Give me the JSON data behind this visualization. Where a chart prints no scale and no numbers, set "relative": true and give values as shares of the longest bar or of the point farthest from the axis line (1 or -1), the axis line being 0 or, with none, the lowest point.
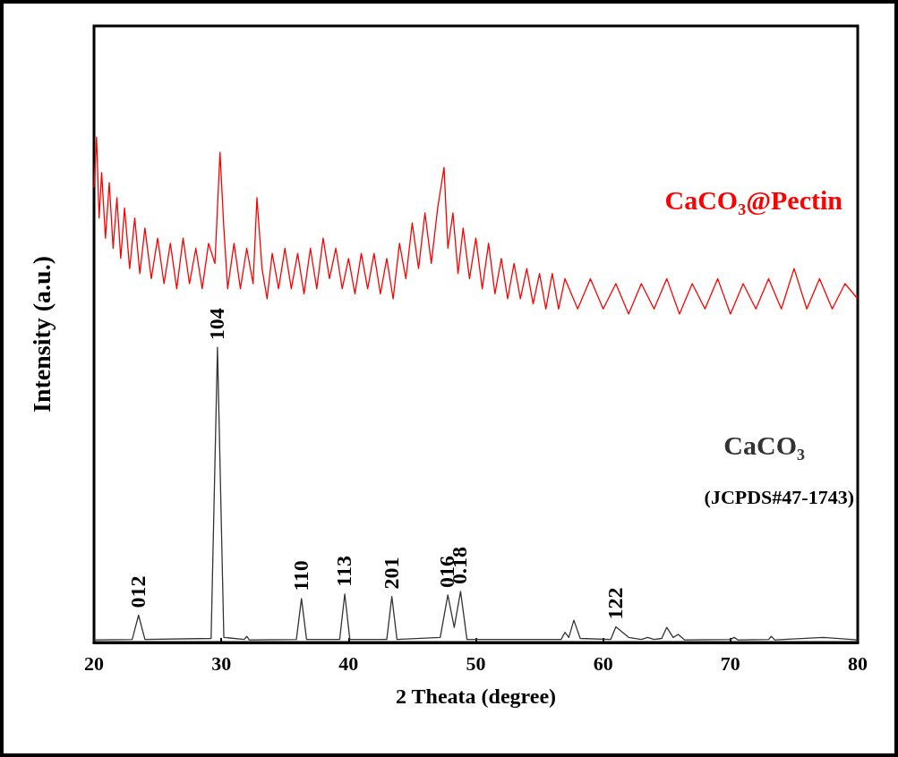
{
  "chart_data": {
    "type": "line",
    "relative": true,
    "xlabel": "2 Theata (degree)",
    "ylabel": "Intensity (a.u.)",
    "xlim": [
      20,
      80
    ],
    "xticks": [
      20,
      30,
      40,
      50,
      60,
      70,
      80
    ],
    "grid": false,
    "legend": false,
    "marker": "none",
    "line_style": "solid",
    "series": [
      {
        "name": "CaCO₃@Pectin",
        "color": "#ff0000",
        "x": [
          20.0,
          20.2,
          20.4,
          20.6,
          20.9,
          21.2,
          21.5,
          21.8,
          22.1,
          22.4,
          22.8,
          23.2,
          23.6,
          24.0,
          24.5,
          25.0,
          25.5,
          26.0,
          26.5,
          27.0,
          27.5,
          28.0,
          28.5,
          29.0,
          29.5,
          29.9,
          30.2,
          30.5,
          31.0,
          31.5,
          32.0,
          32.5,
          32.8,
          33.2,
          33.6,
          34.0,
          34.5,
          35.0,
          35.5,
          36.0,
          36.5,
          37.0,
          37.5,
          38.0,
          38.5,
          39.0,
          39.5,
          40.0,
          40.5,
          41.0,
          41.5,
          42.0,
          42.5,
          43.0,
          43.5,
          44.0,
          44.5,
          45.0,
          45.5,
          46.0,
          46.5,
          47.0,
          47.5,
          47.8,
          48.2,
          48.6,
          49.0,
          49.5,
          50.0,
          50.5,
          51.0,
          51.5,
          52.0,
          52.5,
          53.0,
          53.5,
          54.0,
          54.5,
          55.0,
          55.5,
          56.0,
          56.5,
          57.0,
          58.0,
          59.0,
          60.0,
          61.0,
          62.0,
          63.0,
          64.0,
          65.0,
          66.0,
          67.0,
          68.0,
          69.0,
          70.0,
          71.0,
          72.0,
          73.0,
          74.0,
          75.0,
          76.0,
          77.0,
          78.0,
          79.0,
          80.0
        ],
        "values": [
          0.9,
          1.0,
          0.84,
          0.93,
          0.8,
          0.91,
          0.78,
          0.88,
          0.76,
          0.86,
          0.74,
          0.84,
          0.73,
          0.82,
          0.72,
          0.8,
          0.71,
          0.79,
          0.7,
          0.8,
          0.71,
          0.78,
          0.7,
          0.79,
          0.75,
          0.97,
          0.82,
          0.7,
          0.79,
          0.7,
          0.78,
          0.71,
          0.88,
          0.74,
          0.68,
          0.77,
          0.7,
          0.78,
          0.7,
          0.77,
          0.69,
          0.78,
          0.7,
          0.8,
          0.72,
          0.78,
          0.7,
          0.76,
          0.69,
          0.77,
          0.7,
          0.77,
          0.69,
          0.76,
          0.68,
          0.79,
          0.72,
          0.83,
          0.74,
          0.85,
          0.75,
          0.86,
          0.94,
          0.78,
          0.85,
          0.73,
          0.82,
          0.72,
          0.8,
          0.7,
          0.79,
          0.69,
          0.76,
          0.68,
          0.75,
          0.68,
          0.74,
          0.67,
          0.73,
          0.66,
          0.73,
          0.66,
          0.72,
          0.66,
          0.72,
          0.66,
          0.71,
          0.65,
          0.71,
          0.66,
          0.72,
          0.65,
          0.71,
          0.66,
          0.72,
          0.65,
          0.71,
          0.66,
          0.72,
          0.66,
          0.74,
          0.66,
          0.72,
          0.66,
          0.71,
          0.68
        ]
      },
      {
        "name": "CaCO₃",
        "color": "#333333",
        "x": [
          20,
          23.0,
          23.5,
          24.0,
          29.2,
          29.7,
          30.2,
          31.8,
          32.0,
          32.2,
          35.9,
          36.3,
          36.7,
          39.3,
          39.7,
          40.1,
          43.0,
          43.4,
          43.8,
          47.2,
          47.8,
          48.3,
          48.8,
          49.3,
          56.7,
          57.0,
          57.3,
          57.7,
          58.2,
          60.6,
          61.0,
          62.0,
          63.0,
          63.5,
          64.0,
          64.6,
          65.0,
          65.5,
          65.9,
          66.4,
          70.0,
          70.3,
          70.6,
          73.0,
          73.2,
          73.5,
          77.3,
          80
        ],
        "values": [
          0.005,
          0.006,
          0.054,
          0.006,
          0.008,
          0.584,
          0.01,
          0.006,
          0.012,
          0.005,
          0.006,
          0.087,
          0.006,
          0.006,
          0.096,
          0.006,
          0.006,
          0.091,
          0.006,
          0.01,
          0.094,
          0.03,
          0.101,
          0.006,
          0.006,
          0.02,
          0.01,
          0.044,
          0.008,
          0.006,
          0.031,
          0.01,
          0.006,
          0.01,
          0.006,
          0.008,
          0.03,
          0.01,
          0.016,
          0.005,
          0.006,
          0.01,
          0.005,
          0.006,
          0.012,
          0.005,
          0.01,
          0.005
        ]
      }
    ],
    "annotations": [
      {
        "text": "012",
        "x": 23.5,
        "y": 0.054
      },
      {
        "text": "104",
        "x": 29.7,
        "y": 0.584
      },
      {
        "text": "110",
        "x": 36.3,
        "y": 0.087
      },
      {
        "text": "113",
        "x": 39.7,
        "y": 0.096
      },
      {
        "text": "201",
        "x": 43.4,
        "y": 0.091
      },
      {
        "text": "016",
        "x": 47.8,
        "y": 0.094
      },
      {
        "text": "0.18",
        "x": 48.8,
        "y": 0.101
      },
      {
        "text": "122",
        "x": 61.0,
        "y": 0.031
      },
      "(JCPDS#47-1743)"
    ]
  }
}
